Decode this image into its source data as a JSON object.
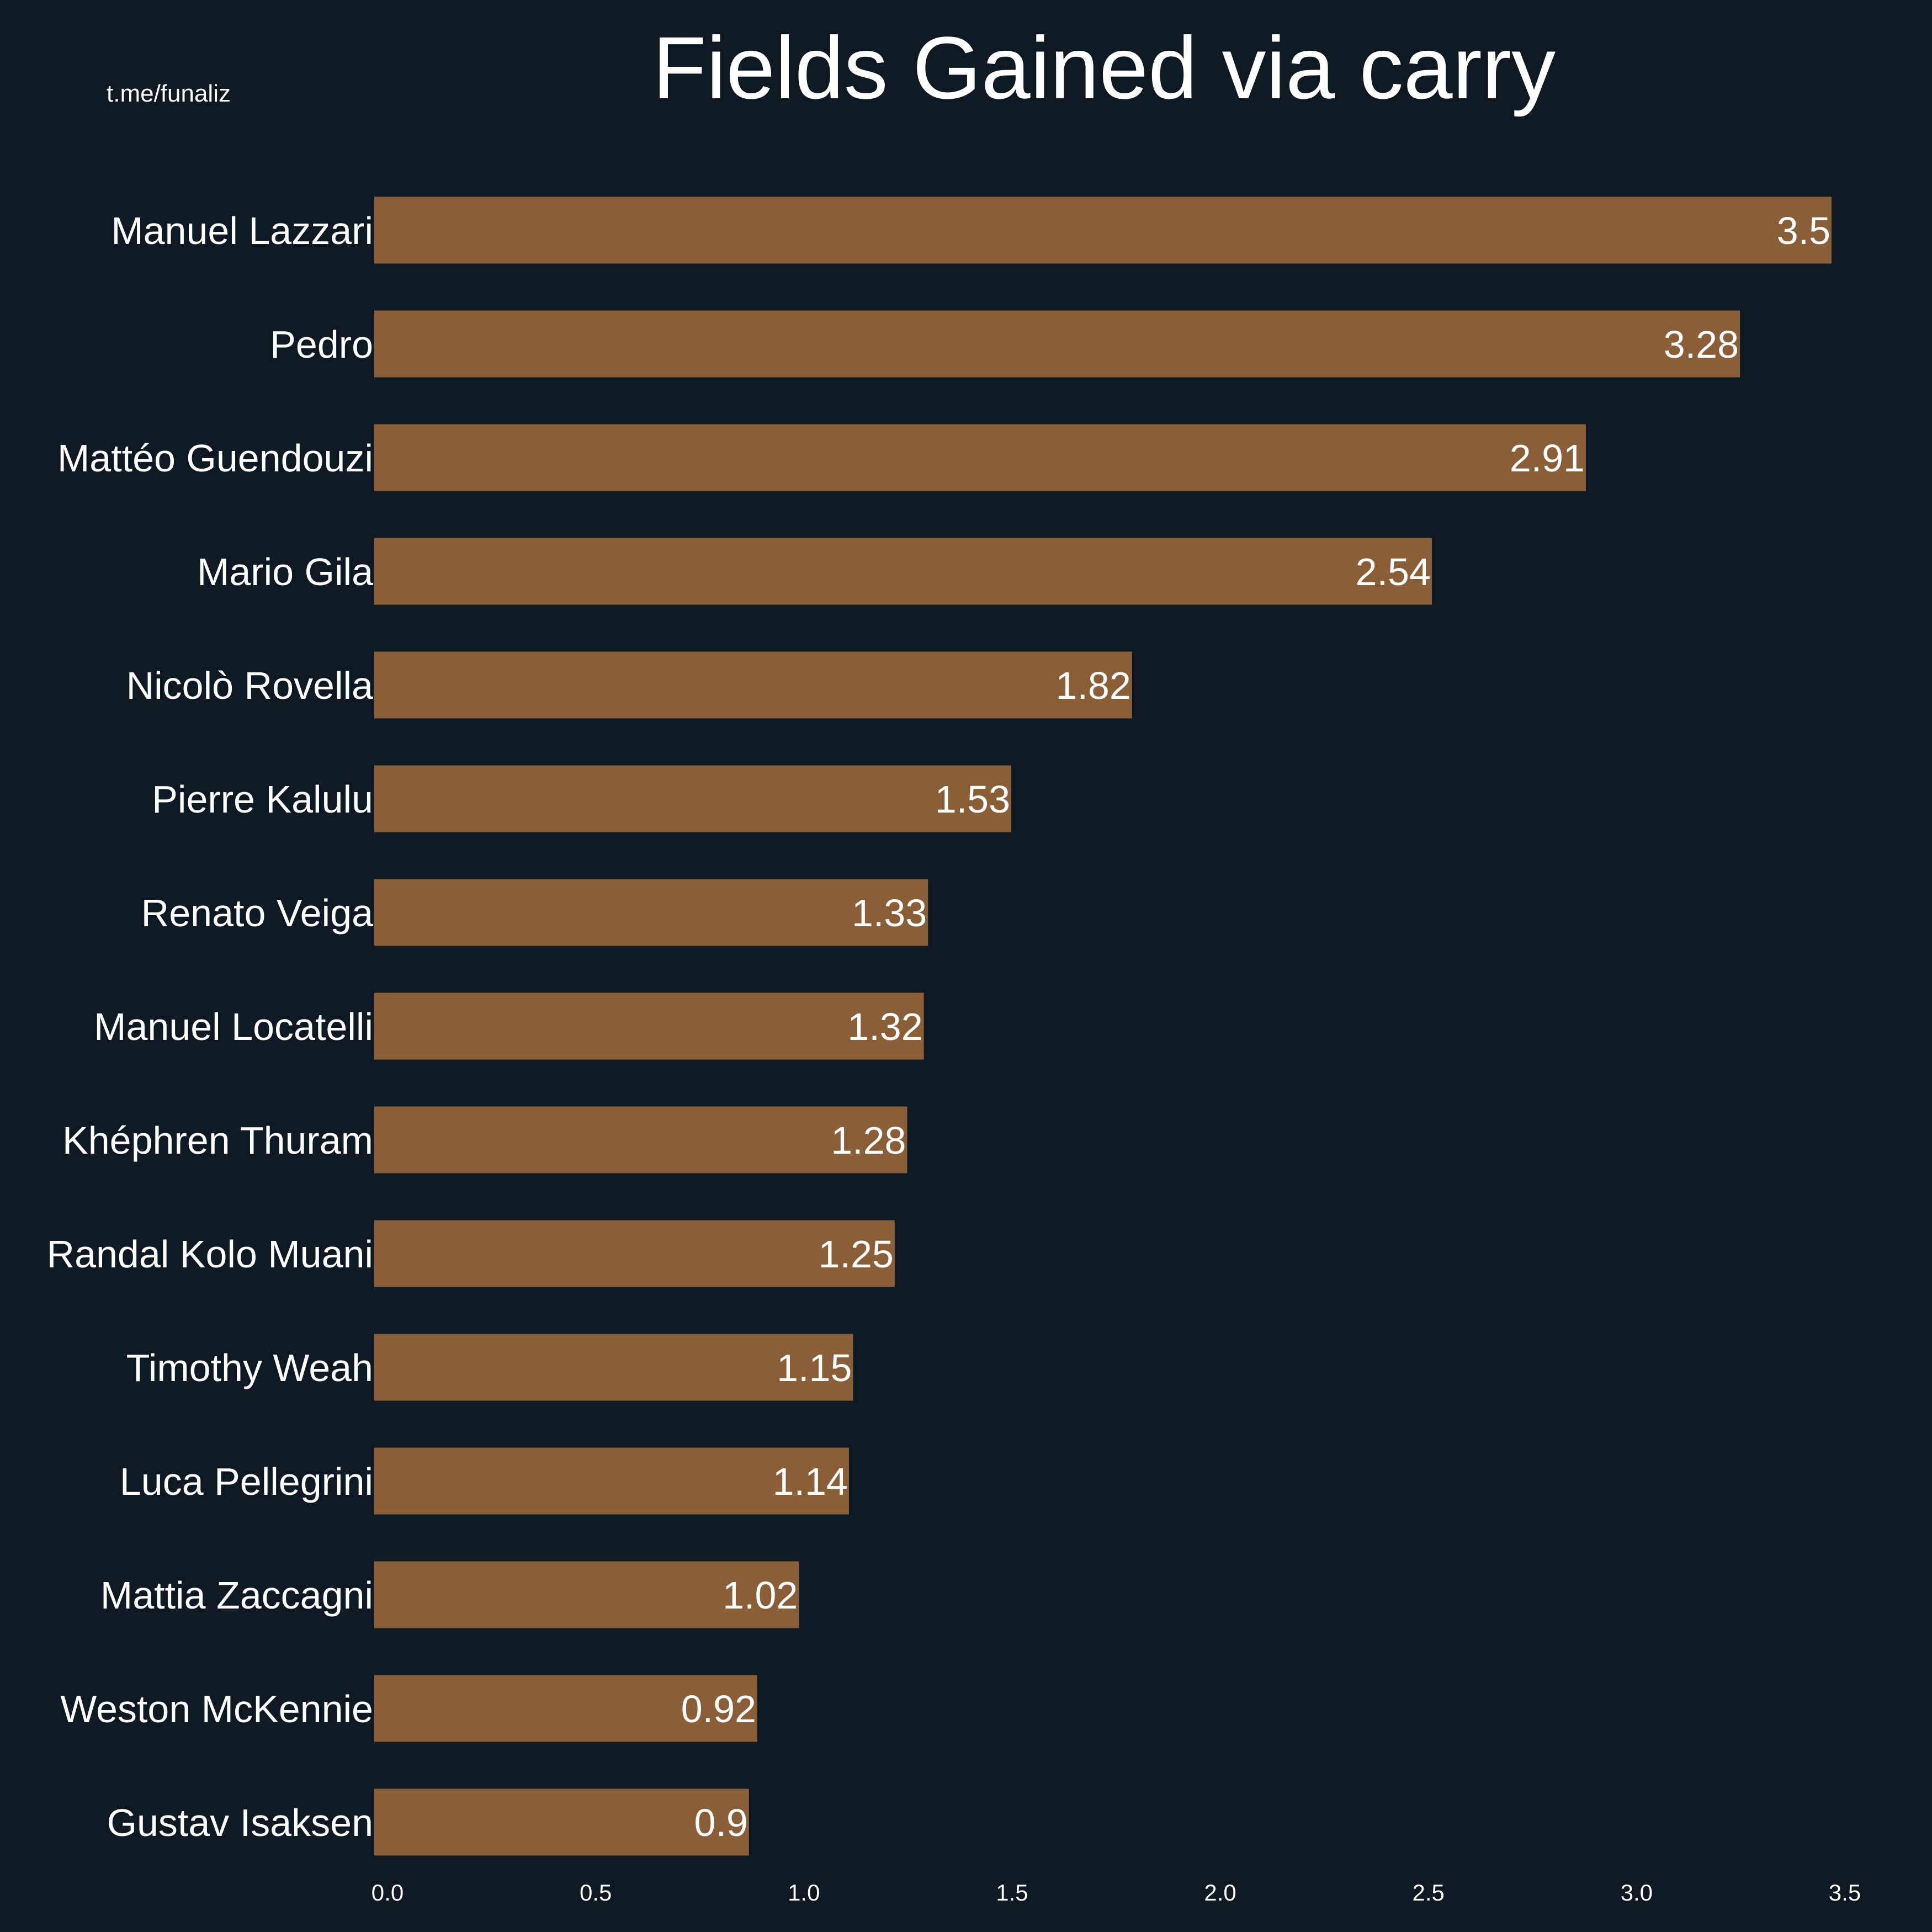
{
  "source_label": "t.me/funaliz",
  "colors": {
    "background": "#0f1923",
    "bar": "#8a5f38",
    "text": "#ffffff"
  },
  "chart_data": {
    "type": "bar",
    "orientation": "horizontal",
    "title": "Fields Gained via carry",
    "xlabel": "",
    "ylabel": "",
    "xlim": [
      0,
      3.5
    ],
    "xticks": [
      "0.0",
      "0.5",
      "1.0",
      "1.5",
      "2.0",
      "2.5",
      "3.0",
      "3.5"
    ],
    "grid": false,
    "legend": "none",
    "categories": [
      "Manuel Lazzari",
      "Pedro",
      "Mattéo Guendouzi",
      "Mario Gila",
      "Nicolò Rovella",
      "Pierre Kalulu",
      "Renato Veiga",
      "Manuel Locatelli",
      "Khéphren Thuram",
      "Randal Kolo Muani",
      "Timothy Weah",
      "Luca Pellegrini",
      "Mattia Zaccagni",
      "Weston McKennie",
      "Gustav Isaksen"
    ],
    "values": [
      3.5,
      3.28,
      2.91,
      2.54,
      1.82,
      1.53,
      1.33,
      1.32,
      1.28,
      1.25,
      1.15,
      1.14,
      1.02,
      0.92,
      0.9
    ],
    "value_labels": [
      "3.5",
      "3.28",
      "2.91",
      "2.54",
      "1.82",
      "1.53",
      "1.33",
      "1.32",
      "1.28",
      "1.25",
      "1.15",
      "1.14",
      "1.02",
      "0.92",
      "0.9"
    ]
  }
}
